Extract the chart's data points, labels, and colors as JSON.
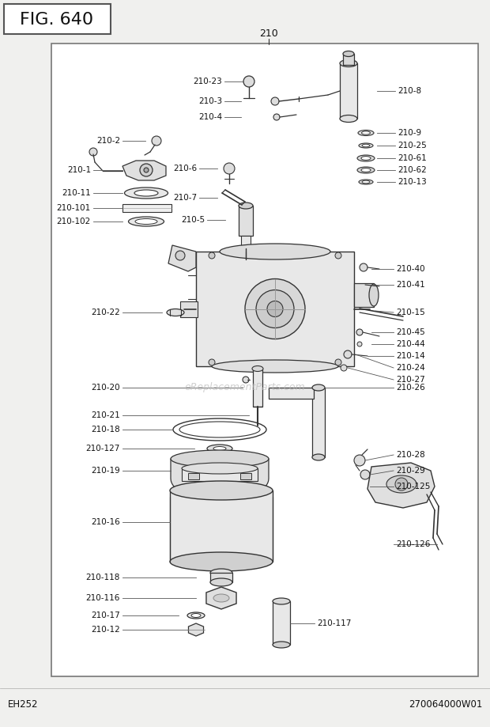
{
  "fig_label": "FIG. 640",
  "main_label": "210",
  "bottom_left": "EH252",
  "bottom_right": "270064000W01",
  "watermark": "eReplacementParts.com",
  "bg_color": "#f0f0ee",
  "box_bg": "#ffffff",
  "border_color": "#888888",
  "text_color": "#111111",
  "lc": "#333333",
  "figsize": [
    6.2,
    9.19
  ],
  "dpi": 100
}
